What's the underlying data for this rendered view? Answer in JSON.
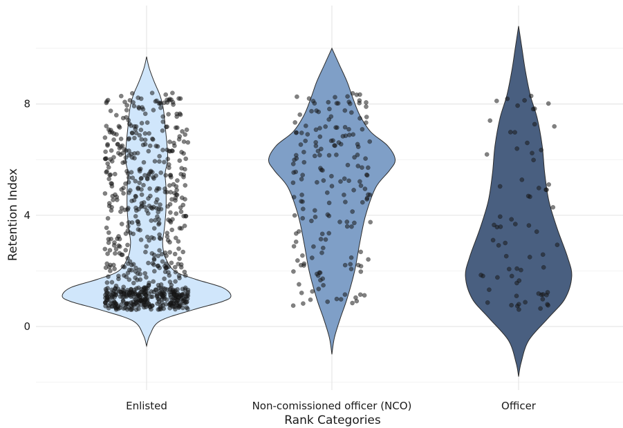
{
  "chart_data": {
    "type": "violin",
    "title": "",
    "xlabel": "Rank Categories",
    "ylabel": "Retention Index",
    "categories": [
      "Enlisted",
      "Non-comissioned officer (NCO)",
      "Officer"
    ],
    "ylim": [
      -2.3,
      11.5
    ],
    "yticks": [
      0,
      4,
      8
    ],
    "grid": true,
    "legend": "none",
    "colors": [
      "#d0e6fb",
      "#7f9fc7",
      "#495f80"
    ],
    "point_color": "#1a1a1a",
    "series": [
      {
        "category": "Enlisted",
        "density_profile": [
          {
            "y": -0.7,
            "w": 0.0
          },
          {
            "y": -0.3,
            "w": 0.04
          },
          {
            "y": 0.2,
            "w": 0.16
          },
          {
            "y": 0.6,
            "w": 0.55
          },
          {
            "y": 0.9,
            "w": 0.9
          },
          {
            "y": 1.1,
            "w": 1.0
          },
          {
            "y": 1.4,
            "w": 0.9
          },
          {
            "y": 1.7,
            "w": 0.58
          },
          {
            "y": 2.0,
            "w": 0.33
          },
          {
            "y": 2.5,
            "w": 0.22
          },
          {
            "y": 3.0,
            "w": 0.19
          },
          {
            "y": 3.5,
            "w": 0.21
          },
          {
            "y": 4.2,
            "w": 0.23
          },
          {
            "y": 5.0,
            "w": 0.23
          },
          {
            "y": 5.5,
            "w": 0.22
          },
          {
            "y": 6.0,
            "w": 0.25
          },
          {
            "y": 6.6,
            "w": 0.24
          },
          {
            "y": 7.2,
            "w": 0.22
          },
          {
            "y": 7.8,
            "w": 0.2
          },
          {
            "y": 8.3,
            "w": 0.16
          },
          {
            "y": 8.8,
            "w": 0.09
          },
          {
            "y": 9.3,
            "w": 0.03
          },
          {
            "y": 9.7,
            "w": 0.0
          }
        ],
        "points": {
          "groups": [
            {
              "n": 300,
              "ymin": 0.6,
              "ymax": 1.4
            },
            {
              "n": 60,
              "ymin": 1.4,
              "ymax": 2.2
            },
            {
              "n": 45,
              "ymin": 2.2,
              "ymax": 3.0
            },
            {
              "n": 45,
              "ymin": 3.0,
              "ymax": 3.8
            },
            {
              "n": 55,
              "ymin": 3.8,
              "ymax": 4.6
            },
            {
              "n": 55,
              "ymin": 4.6,
              "ymax": 5.4
            },
            {
              "n": 70,
              "ymin": 5.4,
              "ymax": 6.4
            },
            {
              "n": 55,
              "ymin": 6.4,
              "ymax": 7.2
            },
            {
              "n": 55,
              "ymin": 7.2,
              "ymax": 8.4
            }
          ],
          "jitter_half_width": 0.45
        }
      },
      {
        "category": "Non-comissioned officer (NCO)",
        "density_profile": [
          {
            "y": -1.0,
            "w": 0.0
          },
          {
            "y": -0.4,
            "w": 0.03
          },
          {
            "y": 0.3,
            "w": 0.1
          },
          {
            "y": 1.0,
            "w": 0.18
          },
          {
            "y": 2.0,
            "w": 0.27
          },
          {
            "y": 3.0,
            "w": 0.33
          },
          {
            "y": 4.0,
            "w": 0.4
          },
          {
            "y": 5.0,
            "w": 0.52
          },
          {
            "y": 5.6,
            "w": 0.68
          },
          {
            "y": 6.0,
            "w": 0.75
          },
          {
            "y": 6.5,
            "w": 0.66
          },
          {
            "y": 7.0,
            "w": 0.46
          },
          {
            "y": 7.6,
            "w": 0.33
          },
          {
            "y": 8.2,
            "w": 0.25
          },
          {
            "y": 8.8,
            "w": 0.18
          },
          {
            "y": 9.4,
            "w": 0.09
          },
          {
            "y": 10.0,
            "w": 0.0
          }
        ],
        "points": {
          "groups": [
            {
              "n": 25,
              "ymin": 0.6,
              "ymax": 2.0
            },
            {
              "n": 25,
              "ymin": 2.0,
              "ymax": 3.5
            },
            {
              "n": 30,
              "ymin": 3.5,
              "ymax": 5.0
            },
            {
              "n": 45,
              "ymin": 5.0,
              "ymax": 6.6
            },
            {
              "n": 30,
              "ymin": 6.6,
              "ymax": 7.6
            },
            {
              "n": 25,
              "ymin": 7.6,
              "ymax": 8.4
            }
          ],
          "jitter_half_width": 0.42
        }
      },
      {
        "category": "Officer",
        "density_profile": [
          {
            "y": -1.8,
            "w": 0.0
          },
          {
            "y": -1.3,
            "w": 0.03
          },
          {
            "y": -0.5,
            "w": 0.12
          },
          {
            "y": 0.3,
            "w": 0.35
          },
          {
            "y": 1.0,
            "w": 0.55
          },
          {
            "y": 1.8,
            "w": 0.63
          },
          {
            "y": 2.5,
            "w": 0.58
          },
          {
            "y": 3.5,
            "w": 0.46
          },
          {
            "y": 4.5,
            "w": 0.36
          },
          {
            "y": 5.5,
            "w": 0.31
          },
          {
            "y": 6.5,
            "w": 0.28
          },
          {
            "y": 7.5,
            "w": 0.22
          },
          {
            "y": 8.3,
            "w": 0.14
          },
          {
            "y": 9.2,
            "w": 0.08
          },
          {
            "y": 10.0,
            "w": 0.04
          },
          {
            "y": 10.8,
            "w": 0.0
          }
        ],
        "points": {
          "groups": [
            {
              "n": 15,
              "ymin": 0.6,
              "ymax": 1.2
            },
            {
              "n": 12,
              "ymin": 1.2,
              "ymax": 2.4
            },
            {
              "n": 10,
              "ymin": 2.4,
              "ymax": 3.6
            },
            {
              "n": 8,
              "ymin": 3.6,
              "ymax": 4.8
            },
            {
              "n": 8,
              "ymin": 4.8,
              "ymax": 6.2
            },
            {
              "n": 8,
              "ymin": 6.2,
              "ymax": 7.4
            },
            {
              "n": 9,
              "ymin": 7.4,
              "ymax": 8.4
            }
          ],
          "jitter_half_width": 0.42
        }
      }
    ]
  }
}
